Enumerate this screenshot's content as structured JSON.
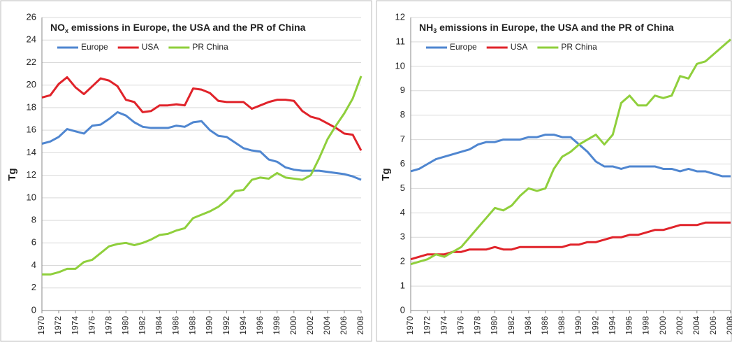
{
  "chart_data": [
    {
      "type": "line",
      "title": [
        "NO",
        "x",
        " emissions in Europe, the USA and the PR of China"
      ],
      "y_label": "Tg",
      "x": [
        1970,
        1971,
        1972,
        1973,
        1974,
        1975,
        1976,
        1977,
        1978,
        1979,
        1980,
        1981,
        1982,
        1983,
        1984,
        1985,
        1986,
        1987,
        1988,
        1989,
        1990,
        1991,
        1992,
        1993,
        1994,
        1995,
        1996,
        1997,
        1998,
        1999,
        2000,
        2001,
        2002,
        2003,
        2004,
        2005,
        2006,
        2007,
        2008
      ],
      "xlim": [
        1970,
        2008
      ],
      "xticks": [
        1970,
        1972,
        1974,
        1976,
        1978,
        1980,
        1982,
        1984,
        1986,
        1988,
        1990,
        1992,
        1994,
        1996,
        1998,
        2000,
        2002,
        2004,
        2006,
        2008
      ],
      "ylim": [
        0,
        26
      ],
      "yticks": [
        0,
        2,
        4,
        6,
        8,
        10,
        12,
        14,
        16,
        18,
        20,
        22,
        24,
        26
      ],
      "grid": true,
      "series": [
        {
          "name": "Europe",
          "color": "#4f86d0",
          "values": [
            14.8,
            15.0,
            15.4,
            16.1,
            15.9,
            15.7,
            16.4,
            16.5,
            17.0,
            17.6,
            17.3,
            16.7,
            16.3,
            16.2,
            16.2,
            16.2,
            16.4,
            16.3,
            16.7,
            16.8,
            16.0,
            15.5,
            15.4,
            14.9,
            14.4,
            14.2,
            14.1,
            13.4,
            13.2,
            12.7,
            12.5,
            12.4,
            12.4,
            12.4,
            12.3,
            12.2,
            12.1,
            11.9,
            11.6
          ]
        },
        {
          "name": "USA",
          "color": "#e0232a",
          "values": [
            18.9,
            19.1,
            20.1,
            20.7,
            19.8,
            19.2,
            19.9,
            20.6,
            20.4,
            19.9,
            18.7,
            18.5,
            17.6,
            17.7,
            18.2,
            18.2,
            18.3,
            18.2,
            19.7,
            19.6,
            19.3,
            18.6,
            18.5,
            18.5,
            18.5,
            17.9,
            18.2,
            18.5,
            18.7,
            18.7,
            18.6,
            17.7,
            17.2,
            17.0,
            16.6,
            16.2,
            15.7,
            15.6,
            14.2
          ]
        },
        {
          "name": "PR China",
          "color": "#8fcf3c",
          "values": [
            3.2,
            3.2,
            3.4,
            3.7,
            3.7,
            4.3,
            4.5,
            5.1,
            5.7,
            5.9,
            6.0,
            5.8,
            6.0,
            6.3,
            6.7,
            6.8,
            7.1,
            7.3,
            8.2,
            8.5,
            8.8,
            9.2,
            9.8,
            10.6,
            10.7,
            11.6,
            11.8,
            11.7,
            12.2,
            11.8,
            11.7,
            11.6,
            12.0,
            13.5,
            15.2,
            16.4,
            17.5,
            18.8,
            20.8
          ]
        }
      ]
    },
    {
      "type": "line",
      "title": [
        "NH",
        "3",
        " emissions in Europe, the USA and the PR of China"
      ],
      "y_label": "Tg",
      "x": [
        1970,
        1971,
        1972,
        1973,
        1974,
        1975,
        1976,
        1977,
        1978,
        1979,
        1980,
        1981,
        1982,
        1983,
        1984,
        1985,
        1986,
        1987,
        1988,
        1989,
        1990,
        1991,
        1992,
        1993,
        1994,
        1995,
        1996,
        1997,
        1998,
        1999,
        2000,
        2001,
        2002,
        2003,
        2004,
        2005,
        2006,
        2007,
        2008
      ],
      "xlim": [
        1970,
        2008
      ],
      "xticks": [
        1970,
        1972,
        1974,
        1976,
        1978,
        1980,
        1982,
        1984,
        1986,
        1988,
        1990,
        1992,
        1994,
        1996,
        1998,
        2000,
        2002,
        2004,
        2006,
        2008
      ],
      "ylim": [
        0,
        12
      ],
      "yticks": [
        0,
        1,
        2,
        3,
        4,
        5,
        6,
        7,
        8,
        9,
        10,
        11,
        12
      ],
      "grid": true,
      "series": [
        {
          "name": "Europe",
          "color": "#4f86d0",
          "values": [
            5.7,
            5.8,
            6.0,
            6.2,
            6.3,
            6.4,
            6.5,
            6.6,
            6.8,
            6.9,
            6.9,
            7.0,
            7.0,
            7.0,
            7.1,
            7.1,
            7.2,
            7.2,
            7.1,
            7.1,
            6.8,
            6.5,
            6.1,
            5.9,
            5.9,
            5.8,
            5.9,
            5.9,
            5.9,
            5.9,
            5.8,
            5.8,
            5.7,
            5.8,
            5.7,
            5.7,
            5.6,
            5.5,
            5.5
          ]
        },
        {
          "name": "USA",
          "color": "#e0232a",
          "values": [
            2.1,
            2.2,
            2.3,
            2.3,
            2.3,
            2.4,
            2.4,
            2.5,
            2.5,
            2.5,
            2.6,
            2.5,
            2.5,
            2.6,
            2.6,
            2.6,
            2.6,
            2.6,
            2.6,
            2.7,
            2.7,
            2.8,
            2.8,
            2.9,
            3.0,
            3.0,
            3.1,
            3.1,
            3.2,
            3.3,
            3.3,
            3.4,
            3.5,
            3.5,
            3.5,
            3.6,
            3.6,
            3.6,
            3.6
          ]
        },
        {
          "name": "PR China",
          "color": "#8fcf3c",
          "values": [
            1.9,
            2.0,
            2.1,
            2.3,
            2.2,
            2.4,
            2.6,
            3.0,
            3.4,
            3.8,
            4.2,
            4.1,
            4.3,
            4.7,
            5.0,
            4.9,
            5.0,
            5.8,
            6.3,
            6.5,
            6.8,
            7.0,
            7.2,
            6.8,
            7.2,
            8.5,
            8.8,
            8.4,
            8.4,
            8.8,
            8.7,
            8.8,
            9.6,
            9.5,
            10.1,
            10.2,
            10.5,
            10.8,
            11.1
          ]
        }
      ]
    }
  ]
}
